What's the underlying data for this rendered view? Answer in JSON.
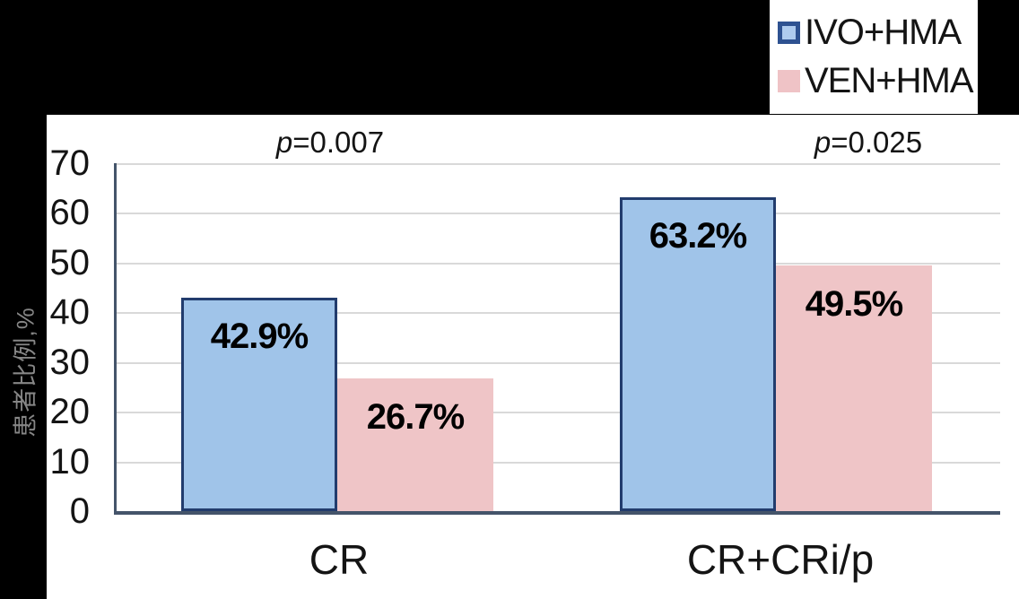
{
  "chart_data": {
    "type": "bar",
    "title": "",
    "categories": [
      "CR",
      "CR+CRi/p"
    ],
    "series": [
      {
        "name": "IVO+HMA",
        "values": [
          42.9,
          63.2
        ],
        "labels": [
          "42.9%",
          "63.2%"
        ],
        "fill_color": "#A0C4E9",
        "border_color": "#223C6D",
        "legend_fill": "#AECBEE",
        "legend_border": "#2E5291"
      },
      {
        "name": "VEN+HMA",
        "values": [
          26.7,
          49.5
        ],
        "labels": [
          "26.7%",
          "49.5%"
        ],
        "fill_color": "#EFC5C7",
        "border_color": null,
        "legend_fill": "#EFC3C6",
        "legend_border": null
      }
    ],
    "p_values": [
      "p=0.007",
      "p=0.025"
    ],
    "p_parts": [
      {
        "italic": "p",
        "rest": "=0.007"
      },
      {
        "italic": "p",
        "rest": "=0.025"
      }
    ],
    "xlabel": "",
    "ylabel": "患者比例,%",
    "ylim": [
      0,
      70
    ],
    "yticks": [
      0,
      10,
      20,
      30,
      40,
      50,
      60,
      70
    ],
    "grid": true,
    "legend_position": "top-right",
    "colors": {
      "background": "#000000",
      "panel": "#FFFFFF",
      "axis": "#44546A",
      "gridline": "#D9D9D9",
      "tick_text": "#141414",
      "ylabel_text": "#868686"
    }
  }
}
